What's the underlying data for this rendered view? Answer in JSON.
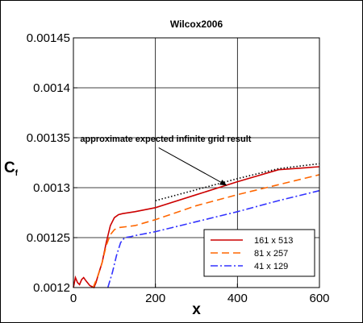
{
  "chart_data": {
    "type": "line",
    "title": "Wilcox2006",
    "xlabel": "x",
    "ylabel": "C",
    "ylabel_subscript": "f",
    "xlim": [
      0,
      600
    ],
    "ylim": [
      0.0012,
      0.00145
    ],
    "xticks": [
      0,
      200,
      400,
      600
    ],
    "xtick_labels": [
      "0",
      "200",
      "400",
      "600"
    ],
    "yticks": [
      0.0012,
      0.00125,
      0.0013,
      0.00135,
      0.0014,
      0.00145
    ],
    "ytick_labels": [
      "0.0012",
      "0.00125",
      "0.0013",
      "0.00135",
      "0.0014",
      "0.00145"
    ],
    "grid": true,
    "legend_position": "bottom-right",
    "annotation": {
      "text": "approximate expected infinite grid result",
      "arrow_to": [
        375,
        0.001302
      ]
    },
    "series": [
      {
        "name": "161 x 513",
        "color": "#cc0000",
        "dash": "solid",
        "points": [
          [
            0,
            0.0012
          ],
          [
            5,
            0.00121
          ],
          [
            10,
            0.001205
          ],
          [
            15,
            0.001203
          ],
          [
            20,
            0.001208
          ],
          [
            25,
            0.00121
          ],
          [
            30,
            0.001207
          ],
          [
            40,
            0.001202
          ],
          [
            50,
            0.0012
          ],
          [
            55,
            0.001205
          ],
          [
            60,
            0.001212
          ],
          [
            70,
            0.001225
          ],
          [
            80,
            0.001245
          ],
          [
            90,
            0.001262
          ],
          [
            100,
            0.00127
          ],
          [
            110,
            0.001273
          ],
          [
            120,
            0.001274
          ],
          [
            150,
            0.001276
          ],
          [
            200,
            0.00128
          ],
          [
            300,
            0.001293
          ],
          [
            400,
            0.001306
          ],
          [
            500,
            0.001318
          ],
          [
            600,
            0.001321
          ]
        ]
      },
      {
        "name": "81 x 257",
        "color": "#ff6600",
        "dash": "dashed",
        "points": [
          [
            48,
            0.0012
          ],
          [
            60,
            0.001212
          ],
          [
            70,
            0.001225
          ],
          [
            80,
            0.001242
          ],
          [
            90,
            0.001253
          ],
          [
            100,
            0.001258
          ],
          [
            110,
            0.00126
          ],
          [
            150,
            0.001262
          ],
          [
            200,
            0.001268
          ],
          [
            300,
            0.001282
          ],
          [
            400,
            0.001293
          ],
          [
            500,
            0.001303
          ],
          [
            600,
            0.001313
          ]
        ]
      },
      {
        "name": "41 x 129",
        "color": "#3333ff",
        "dash": "dashdot",
        "points": [
          [
            84,
            0.0012
          ],
          [
            95,
            0.001215
          ],
          [
            105,
            0.001232
          ],
          [
            115,
            0.001245
          ],
          [
            125,
            0.00125
          ],
          [
            140,
            0.001251
          ],
          [
            150,
            0.001252
          ],
          [
            200,
            0.001256
          ],
          [
            300,
            0.001266
          ],
          [
            400,
            0.001276
          ],
          [
            500,
            0.001287
          ],
          [
            600,
            0.001297
          ]
        ]
      },
      {
        "name": "",
        "color": "#000000",
        "dash": "dotted",
        "points": [
          [
            200,
            0.001287
          ],
          [
            300,
            0.001298
          ],
          [
            400,
            0.001309
          ],
          [
            500,
            0.001319
          ],
          [
            600,
            0.001324
          ]
        ]
      }
    ]
  }
}
